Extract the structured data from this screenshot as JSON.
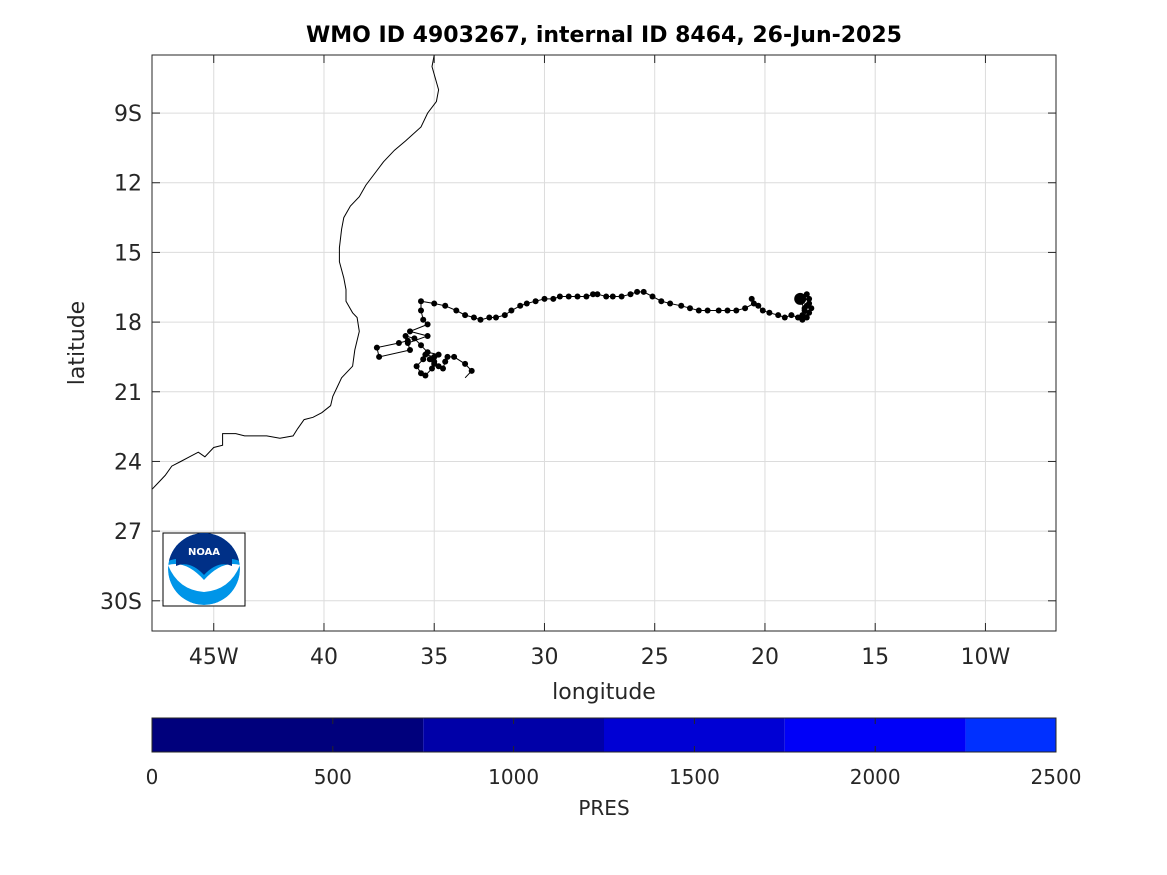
{
  "chart_data": {
    "type": "scatter",
    "title": "WMO ID 4903267, internal ID 8464, 26-Jun-2025",
    "xlabel": "longitude",
    "ylabel": "latitude",
    "x_direction": "reversed (west longitude increases to the left)",
    "xlim": [
      47.8,
      6.8
    ],
    "ylim": [
      31.3,
      6.5
    ],
    "xticks": [
      45,
      40,
      35,
      30,
      25,
      20,
      15,
      10
    ],
    "xtick_labels": [
      "45W",
      "40",
      "35",
      "30",
      "25",
      "20",
      "15",
      "10W"
    ],
    "yticks": [
      9,
      12,
      15,
      18,
      21,
      24,
      27,
      30
    ],
    "ytick_labels": [
      "9S",
      "12",
      "15",
      "18",
      "21",
      "24",
      "27",
      "30S"
    ],
    "grid": true,
    "line_color": "#000000",
    "marker_color": "#000000",
    "coastline": [
      [
        35.0,
        6.5
      ],
      [
        35.1,
        7.0
      ],
      [
        34.8,
        8.0
      ],
      [
        34.9,
        8.5
      ],
      [
        35.3,
        9.0
      ],
      [
        35.6,
        9.6
      ],
      [
        36.3,
        10.2
      ],
      [
        36.8,
        10.6
      ],
      [
        37.3,
        11.1
      ],
      [
        37.7,
        11.6
      ],
      [
        38.1,
        12.1
      ],
      [
        38.4,
        12.6
      ],
      [
        38.8,
        13.0
      ],
      [
        39.1,
        13.5
      ],
      [
        39.2,
        14.0
      ],
      [
        39.3,
        14.8
      ],
      [
        39.3,
        15.4
      ],
      [
        39.1,
        16.1
      ],
      [
        39.0,
        16.6
      ],
      [
        39.0,
        17.1
      ],
      [
        38.7,
        17.6
      ],
      [
        38.5,
        17.8
      ],
      [
        38.4,
        18.4
      ],
      [
        38.6,
        19.2
      ],
      [
        38.7,
        19.9
      ],
      [
        39.2,
        20.4
      ],
      [
        39.4,
        20.8
      ],
      [
        39.6,
        21.2
      ],
      [
        39.7,
        21.6
      ],
      [
        40.1,
        21.9
      ],
      [
        40.5,
        22.1
      ],
      [
        40.9,
        22.2
      ],
      [
        41.2,
        22.6
      ],
      [
        41.4,
        22.9
      ],
      [
        42.0,
        23.0
      ],
      [
        42.6,
        22.9
      ],
      [
        43.6,
        22.9
      ],
      [
        44.0,
        22.8
      ],
      [
        44.6,
        22.8
      ],
      [
        44.6,
        23.3
      ],
      [
        45.0,
        23.4
      ],
      [
        45.4,
        23.8
      ],
      [
        45.7,
        23.6
      ],
      [
        46.1,
        23.8
      ],
      [
        46.5,
        24.0
      ],
      [
        46.9,
        24.2
      ],
      [
        47.2,
        24.6
      ],
      [
        47.5,
        24.9
      ],
      [
        47.8,
        25.2
      ]
    ],
    "track": [
      [
        33.6,
        20.4
      ],
      [
        33.3,
        20.1
      ],
      [
        33.6,
        19.8
      ],
      [
        34.1,
        19.5
      ],
      [
        34.4,
        19.5
      ],
      [
        34.5,
        19.7
      ],
      [
        34.6,
        20.0
      ],
      [
        34.8,
        19.9
      ],
      [
        35.0,
        19.8
      ],
      [
        35.2,
        19.6
      ],
      [
        35.0,
        19.5
      ],
      [
        35.4,
        19.4
      ],
      [
        35.5,
        19.6
      ],
      [
        35.8,
        19.9
      ],
      [
        35.6,
        20.2
      ],
      [
        35.4,
        20.3
      ],
      [
        35.1,
        20.0
      ],
      [
        35.0,
        19.7
      ],
      [
        34.8,
        19.4
      ],
      [
        35.3,
        19.3
      ],
      [
        35.6,
        19.0
      ],
      [
        35.9,
        18.7
      ],
      [
        36.3,
        18.6
      ],
      [
        36.2,
        18.8
      ],
      [
        36.6,
        18.9
      ],
      [
        37.6,
        19.1
      ],
      [
        37.5,
        19.5
      ],
      [
        36.1,
        19.2
      ],
      [
        36.2,
        18.9
      ],
      [
        35.3,
        18.6
      ],
      [
        36.1,
        18.4
      ],
      [
        35.3,
        18.1
      ],
      [
        35.5,
        17.9
      ],
      [
        35.6,
        17.5
      ],
      [
        35.6,
        17.1
      ],
      [
        35.0,
        17.2
      ],
      [
        34.5,
        17.3
      ],
      [
        34.0,
        17.5
      ],
      [
        33.6,
        17.7
      ],
      [
        33.2,
        17.8
      ],
      [
        32.9,
        17.9
      ],
      [
        32.5,
        17.8
      ],
      [
        32.2,
        17.8
      ],
      [
        31.8,
        17.7
      ],
      [
        31.5,
        17.5
      ],
      [
        31.1,
        17.3
      ],
      [
        30.8,
        17.2
      ],
      [
        30.4,
        17.1
      ],
      [
        30.0,
        17.0
      ],
      [
        29.6,
        17.0
      ],
      [
        29.3,
        16.9
      ],
      [
        28.9,
        16.9
      ],
      [
        28.5,
        16.9
      ],
      [
        28.1,
        16.9
      ],
      [
        27.8,
        16.8
      ],
      [
        27.6,
        16.8
      ],
      [
        27.2,
        16.9
      ],
      [
        26.9,
        16.9
      ],
      [
        26.5,
        16.9
      ],
      [
        26.1,
        16.8
      ],
      [
        25.8,
        16.7
      ],
      [
        25.5,
        16.7
      ],
      [
        25.1,
        16.9
      ],
      [
        24.7,
        17.1
      ],
      [
        24.3,
        17.2
      ],
      [
        23.8,
        17.3
      ],
      [
        23.4,
        17.4
      ],
      [
        23.0,
        17.5
      ],
      [
        22.6,
        17.5
      ],
      [
        22.1,
        17.5
      ],
      [
        21.7,
        17.5
      ],
      [
        21.3,
        17.5
      ],
      [
        20.9,
        17.4
      ],
      [
        20.5,
        17.2
      ],
      [
        20.6,
        17.0
      ],
      [
        20.3,
        17.3
      ],
      [
        20.1,
        17.5
      ],
      [
        19.8,
        17.6
      ],
      [
        19.4,
        17.7
      ],
      [
        19.1,
        17.8
      ],
      [
        18.8,
        17.7
      ],
      [
        18.5,
        17.8
      ],
      [
        18.3,
        17.7
      ],
      [
        18.2,
        17.4
      ],
      [
        18.4,
        17.1
      ],
      [
        18.0,
        17.0
      ],
      [
        18.1,
        17.3
      ],
      [
        17.9,
        17.4
      ],
      [
        18.0,
        17.6
      ],
      [
        18.3,
        17.9
      ],
      [
        18.1,
        17.8
      ],
      [
        18.2,
        17.5
      ],
      [
        18.0,
        17.2
      ],
      [
        18.1,
        16.8
      ],
      [
        18.4,
        17.0
      ]
    ],
    "colorbar": {
      "label": "PRES",
      "range": [
        0,
        2500
      ],
      "ticks": [
        0,
        500,
        1000,
        1500,
        2000,
        2500
      ],
      "tick_labels": [
        "0",
        "500",
        "1000",
        "1500",
        "2000",
        "2500"
      ],
      "segments": [
        {
          "from": 0,
          "to": 750,
          "color": "#00007c"
        },
        {
          "from": 750,
          "to": 1250,
          "color": "#0000a8"
        },
        {
          "from": 1250,
          "to": 1750,
          "color": "#0000d4"
        },
        {
          "from": 1750,
          "to": 2250,
          "color": "#0000f8"
        },
        {
          "from": 2250,
          "to": 2500,
          "color": "#0030ff"
        }
      ]
    }
  },
  "logo": {
    "text": "NOAA",
    "colors": {
      "dark": "#003087",
      "light": "#0095e8",
      "white": "#ffffff"
    }
  }
}
